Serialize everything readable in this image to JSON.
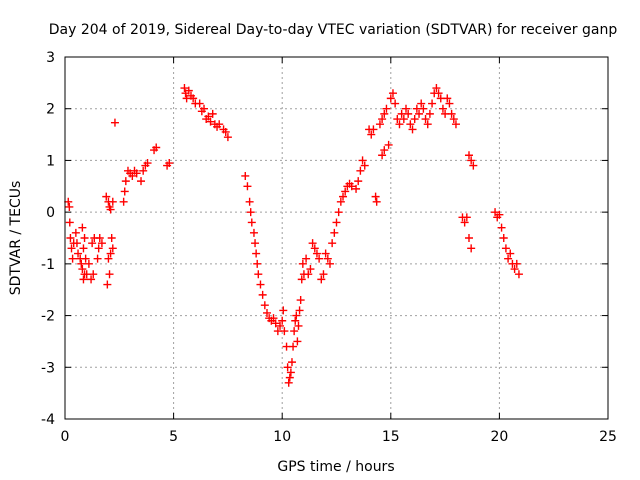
{
  "chart_data": {
    "type": "scatter",
    "title": "Day 204 of 2019, Sidereal Day-to-day VTEC variation (SDTVAR) for receiver ganp",
    "xlabel": "GPS time / hours",
    "ylabel": "SDTVAR / TECUs",
    "xlim": [
      0,
      25
    ],
    "ylim": [
      -4,
      3
    ],
    "xticks": [
      0,
      5,
      10,
      15,
      20,
      25
    ],
    "yticks": [
      -4,
      -3,
      -2,
      -1,
      0,
      1,
      2,
      3
    ],
    "xtick_labels": [
      "0",
      "5",
      "10",
      "15",
      "20",
      "25"
    ],
    "ytick_labels": [
      "-4",
      "-3",
      "-2",
      "-1",
      "0",
      "1",
      "2",
      "3"
    ],
    "grid": true,
    "marker": "plus",
    "marker_color": "#ff0000",
    "series": [
      {
        "name": "SDTVAR",
        "points": [
          [
            0.15,
            0.2
          ],
          [
            0.2,
            0.1
          ],
          [
            0.22,
            -0.2
          ],
          [
            0.25,
            -0.5
          ],
          [
            0.3,
            -0.7
          ],
          [
            0.35,
            -0.9
          ],
          [
            0.4,
            -0.6
          ],
          [
            0.5,
            -0.4
          ],
          [
            0.55,
            -0.6
          ],
          [
            0.6,
            -0.8
          ],
          [
            0.7,
            -0.9
          ],
          [
            0.75,
            -1.0
          ],
          [
            0.8,
            -1.1
          ],
          [
            0.85,
            -1.3
          ],
          [
            0.9,
            -1.2
          ],
          [
            0.95,
            -0.9
          ],
          [
            0.8,
            -0.3
          ],
          [
            0.85,
            -0.7
          ],
          [
            0.9,
            -0.5
          ],
          [
            1.0,
            -1.2
          ],
          [
            1.1,
            -1.0
          ],
          [
            1.2,
            -1.3
          ],
          [
            1.3,
            -1.2
          ],
          [
            1.25,
            -0.6
          ],
          [
            1.35,
            -0.5
          ],
          [
            1.5,
            -0.9
          ],
          [
            1.55,
            -0.7
          ],
          [
            1.6,
            -0.5
          ],
          [
            1.7,
            -0.6
          ],
          [
            1.9,
            0.3
          ],
          [
            2.0,
            0.2
          ],
          [
            2.05,
            0.1
          ],
          [
            2.1,
            0.05
          ],
          [
            2.2,
            0.2
          ],
          [
            2.0,
            -0.9
          ],
          [
            2.05,
            -1.2
          ],
          [
            1.95,
            -1.4
          ],
          [
            2.1,
            -0.8
          ],
          [
            2.15,
            -0.5
          ],
          [
            2.2,
            -0.7
          ],
          [
            2.3,
            1.73
          ],
          [
            2.7,
            0.2
          ],
          [
            2.75,
            0.4
          ],
          [
            2.8,
            0.6
          ],
          [
            2.9,
            0.8
          ],
          [
            3.0,
            0.75
          ],
          [
            3.1,
            0.7
          ],
          [
            3.2,
            0.8
          ],
          [
            3.3,
            0.75
          ],
          [
            3.5,
            0.6
          ],
          [
            3.6,
            0.8
          ],
          [
            3.7,
            0.9
          ],
          [
            3.8,
            0.95
          ],
          [
            4.1,
            1.2
          ],
          [
            4.2,
            1.25
          ],
          [
            4.7,
            0.9
          ],
          [
            4.8,
            0.95
          ],
          [
            5.5,
            2.4
          ],
          [
            5.55,
            2.3
          ],
          [
            5.6,
            2.2
          ],
          [
            5.7,
            2.35
          ],
          [
            5.8,
            2.25
          ],
          [
            5.9,
            2.2
          ],
          [
            6.0,
            2.1
          ],
          [
            6.2,
            2.1
          ],
          [
            6.3,
            1.95
          ],
          [
            6.4,
            2.0
          ],
          [
            6.5,
            1.8
          ],
          [
            6.6,
            1.85
          ],
          [
            6.7,
            1.75
          ],
          [
            6.8,
            1.9
          ],
          [
            6.9,
            1.7
          ],
          [
            7.0,
            1.65
          ],
          [
            7.1,
            1.7
          ],
          [
            7.3,
            1.6
          ],
          [
            7.4,
            1.55
          ],
          [
            7.5,
            1.45
          ],
          [
            8.3,
            0.7
          ],
          [
            8.4,
            0.5
          ],
          [
            8.5,
            0.2
          ],
          [
            8.55,
            0.0
          ],
          [
            8.6,
            -0.2
          ],
          [
            8.7,
            -0.4
          ],
          [
            8.75,
            -0.6
          ],
          [
            8.8,
            -0.8
          ],
          [
            8.85,
            -1.0
          ],
          [
            8.9,
            -1.2
          ],
          [
            9.0,
            -1.4
          ],
          [
            9.1,
            -1.6
          ],
          [
            9.2,
            -1.8
          ],
          [
            9.3,
            -1.95
          ],
          [
            9.4,
            -2.05
          ],
          [
            9.5,
            -2.1
          ],
          [
            9.6,
            -2.05
          ],
          [
            9.7,
            -2.15
          ],
          [
            9.8,
            -2.3
          ],
          [
            9.9,
            -2.2
          ],
          [
            10.0,
            -2.1
          ],
          [
            10.05,
            -1.9
          ],
          [
            10.1,
            -2.3
          ],
          [
            10.2,
            -2.6
          ],
          [
            10.25,
            -3.0
          ],
          [
            10.3,
            -3.3
          ],
          [
            10.35,
            -3.2
          ],
          [
            10.4,
            -3.1
          ],
          [
            10.45,
            -2.9
          ],
          [
            10.5,
            -2.6
          ],
          [
            10.55,
            -2.3
          ],
          [
            10.6,
            -2.1
          ],
          [
            10.65,
            -2.0
          ],
          [
            10.7,
            -2.5
          ],
          [
            10.75,
            -2.2
          ],
          [
            10.8,
            -1.9
          ],
          [
            10.85,
            -1.7
          ],
          [
            10.9,
            -1.3
          ],
          [
            10.95,
            -1.0
          ],
          [
            11.0,
            -1.2
          ],
          [
            11.1,
            -0.9
          ],
          [
            11.2,
            -1.2
          ],
          [
            11.3,
            -1.1
          ],
          [
            11.4,
            -0.6
          ],
          [
            11.5,
            -0.7
          ],
          [
            11.6,
            -0.8
          ],
          [
            11.7,
            -0.9
          ],
          [
            11.8,
            -1.3
          ],
          [
            11.9,
            -1.2
          ],
          [
            12.0,
            -0.8
          ],
          [
            12.1,
            -0.9
          ],
          [
            12.2,
            -1.0
          ],
          [
            12.3,
            -0.6
          ],
          [
            12.4,
            -0.4
          ],
          [
            12.5,
            -0.2
          ],
          [
            12.6,
            0.0
          ],
          [
            12.7,
            0.2
          ],
          [
            12.8,
            0.3
          ],
          [
            12.9,
            0.4
          ],
          [
            13.0,
            0.5
          ],
          [
            13.1,
            0.55
          ],
          [
            13.2,
            0.5
          ],
          [
            13.4,
            0.45
          ],
          [
            13.5,
            0.6
          ],
          [
            13.6,
            0.8
          ],
          [
            13.7,
            1.0
          ],
          [
            13.8,
            0.9
          ],
          [
            14.0,
            1.6
          ],
          [
            14.1,
            1.5
          ],
          [
            14.2,
            1.6
          ],
          [
            14.3,
            0.3
          ],
          [
            14.35,
            0.2
          ],
          [
            14.5,
            1.7
          ],
          [
            14.6,
            1.8
          ],
          [
            14.7,
            1.9
          ],
          [
            14.8,
            2.0
          ],
          [
            14.6,
            1.1
          ],
          [
            14.7,
            1.2
          ],
          [
            14.9,
            1.3
          ],
          [
            15.0,
            2.2
          ],
          [
            15.1,
            2.3
          ],
          [
            15.2,
            2.1
          ],
          [
            15.3,
            1.8
          ],
          [
            15.4,
            1.7
          ],
          [
            15.5,
            1.9
          ],
          [
            15.6,
            1.8
          ],
          [
            15.7,
            2.0
          ],
          [
            15.8,
            1.9
          ],
          [
            15.9,
            1.7
          ],
          [
            16.0,
            1.6
          ],
          [
            16.1,
            1.8
          ],
          [
            16.2,
            2.0
          ],
          [
            16.3,
            1.9
          ],
          [
            16.4,
            2.1
          ],
          [
            16.5,
            2.0
          ],
          [
            16.6,
            1.8
          ],
          [
            16.7,
            1.7
          ],
          [
            16.8,
            1.9
          ],
          [
            16.9,
            2.1
          ],
          [
            17.0,
            2.3
          ],
          [
            17.1,
            2.4
          ],
          [
            17.2,
            2.3
          ],
          [
            17.3,
            2.2
          ],
          [
            17.4,
            2.0
          ],
          [
            17.5,
            1.9
          ],
          [
            17.6,
            2.2
          ],
          [
            17.7,
            2.1
          ],
          [
            17.8,
            1.9
          ],
          [
            17.9,
            1.8
          ],
          [
            18.0,
            1.7
          ],
          [
            18.3,
            -0.1
          ],
          [
            18.4,
            -0.2
          ],
          [
            18.5,
            -0.1
          ],
          [
            18.6,
            1.1
          ],
          [
            18.7,
            1.0
          ],
          [
            18.8,
            0.9
          ],
          [
            18.6,
            -0.5
          ],
          [
            18.7,
            -0.7
          ],
          [
            19.8,
            0.0
          ],
          [
            19.9,
            -0.1
          ],
          [
            20.0,
            -0.05
          ],
          [
            20.1,
            -0.3
          ],
          [
            20.2,
            -0.5
          ],
          [
            20.3,
            -0.7
          ],
          [
            20.4,
            -0.9
          ],
          [
            20.5,
            -0.8
          ],
          [
            20.6,
            -1.0
          ],
          [
            20.7,
            -1.1
          ],
          [
            20.8,
            -1.0
          ],
          [
            20.9,
            -1.2
          ]
        ]
      }
    ]
  }
}
